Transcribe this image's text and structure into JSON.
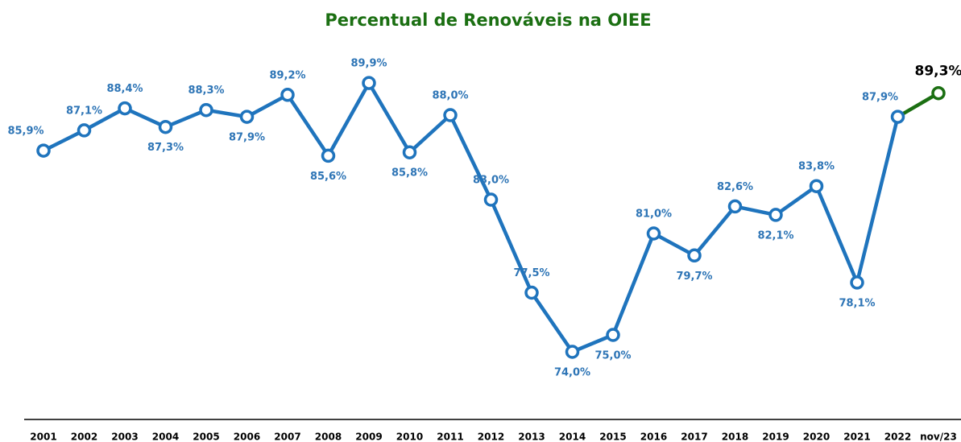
{
  "chart_data": {
    "type": "line",
    "title": "Percentual de Renováveis na OIEE",
    "categories": [
      "2001",
      "2002",
      "2003",
      "2004",
      "2005",
      "2006",
      "2007",
      "2008",
      "2009",
      "2010",
      "2011",
      "2012",
      "2013",
      "2014",
      "2015",
      "2016",
      "2017",
      "2018",
      "2019",
      "2020",
      "2021",
      "2022",
      "nov/23"
    ],
    "series": [
      {
        "name": "Percentual de Renováveis",
        "color": "#1f74bd",
        "last_point_color": "#1b6f12",
        "values": [
          85.9,
          87.1,
          88.4,
          87.3,
          88.3,
          87.9,
          89.2,
          85.6,
          89.9,
          85.8,
          88.0,
          83.0,
          77.5,
          74.0,
          75.0,
          81.0,
          79.7,
          82.6,
          82.1,
          83.8,
          78.1,
          87.9,
          89.3
        ],
        "value_labels": [
          "85,9%",
          "87,1%",
          "88,4%",
          "87,3%",
          "88,3%",
          "87,9%",
          "89,2%",
          "85,6%",
          "89,9%",
          "85,8%",
          "88,0%",
          "83,0%",
          "77,5%",
          "74,0%",
          "75,0%",
          "81,0%",
          "79,7%",
          "82,6%",
          "82,1%",
          "83,8%",
          "78,1%",
          "87,9%",
          "89,3%"
        ]
      }
    ],
    "ylim": [
      70,
      92
    ]
  }
}
